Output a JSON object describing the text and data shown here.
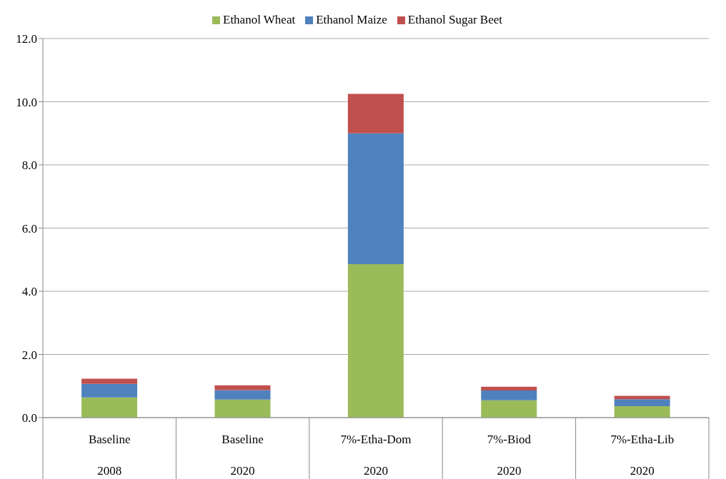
{
  "chart_data": {
    "type": "bar",
    "stacked": true,
    "categories": [
      "Baseline\n2008",
      "Baseline\n2020",
      "7%-Etha-Dom\n2020",
      "7%-Biod\n2020",
      "7%-Etha-Lib\n2020"
    ],
    "series": [
      {
        "name": "Ethanol Wheat",
        "color": "#9bbb59",
        "values": [
          0.64,
          0.57,
          4.86,
          0.55,
          0.36
        ]
      },
      {
        "name": "Ethanol Maize",
        "color": "#4f81bd",
        "values": [
          0.43,
          0.3,
          4.14,
          0.31,
          0.22
        ]
      },
      {
        "name": "Ethanol Sugar Beet",
        "color": "#c0504d",
        "values": [
          0.16,
          0.15,
          1.25,
          0.12,
          0.11
        ]
      }
    ],
    "ylim": [
      0,
      12
    ],
    "yticks": [
      {
        "value": 0,
        "label": "0.0"
      },
      {
        "value": 2,
        "label": "2.0"
      },
      {
        "value": 4,
        "label": "4.0"
      },
      {
        "value": 6,
        "label": "6.0"
      },
      {
        "value": 8,
        "label": "8.0"
      },
      {
        "value": 10,
        "label": "10.0"
      },
      {
        "value": 12,
        "label": "12.0"
      }
    ],
    "grid": "y",
    "legend": "top"
  }
}
